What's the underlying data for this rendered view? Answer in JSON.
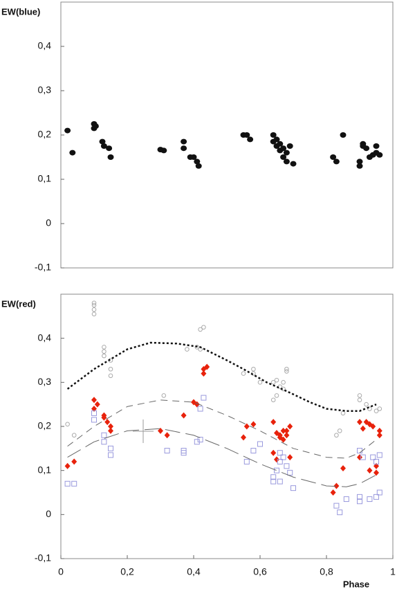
{
  "chart_data": [
    {
      "type": "scatter",
      "ylabel": "EW(blue)",
      "xlim": [
        0,
        1
      ],
      "ylim": [
        -0.1,
        0.5
      ],
      "yticks": [
        {
          "value": -0.1,
          "label": "-0,1"
        },
        0,
        {
          "value": 0.1,
          "label": "0,1"
        },
        {
          "value": 0.2,
          "label": "0,2"
        },
        {
          "value": 0.3,
          "label": "0,3"
        },
        {
          "value": 0.4,
          "label": "0,4"
        }
      ],
      "series": [
        {
          "color": "#111111",
          "marker": "filled-circle",
          "x": [
            0.02,
            0.035,
            0.1,
            0.1,
            0.105,
            0.125,
            0.13,
            0.145,
            0.15,
            0.3,
            0.31,
            0.37,
            0.37,
            0.39,
            0.4,
            0.41,
            0.415,
            0.55,
            0.56,
            0.57,
            0.64,
            0.64,
            0.65,
            0.65,
            0.66,
            0.66,
            0.67,
            0.67,
            0.68,
            0.68,
            0.69,
            0.7,
            0.82,
            0.83,
            0.85,
            0.9,
            0.9,
            0.91,
            0.91,
            0.92,
            0.93,
            0.94,
            0.95,
            0.95,
            0.96
          ],
          "values": [
            0.21,
            0.16,
            0.225,
            0.215,
            0.22,
            0.185,
            0.175,
            0.17,
            0.15,
            0.167,
            0.165,
            0.185,
            0.17,
            0.15,
            0.15,
            0.14,
            0.13,
            0.2,
            0.2,
            0.19,
            0.2,
            0.185,
            0.175,
            0.19,
            0.165,
            0.18,
            0.15,
            0.17,
            0.16,
            0.14,
            0.175,
            0.135,
            0.15,
            0.14,
            0.2,
            0.14,
            0.13,
            0.18,
            0.175,
            0.17,
            0.15,
            0.155,
            0.175,
            0.16,
            0.155
          ]
        }
      ]
    },
    {
      "type": "scatter",
      "ylabel": "EW(red)",
      "xlabel": "Phase",
      "xlim": [
        0,
        1
      ],
      "ylim": [
        -0.1,
        0.5
      ],
      "xticks": [
        0,
        {
          "value": 0.2,
          "label": "0,2"
        },
        {
          "value": 0.4,
          "label": "0,4"
        },
        {
          "value": 0.6,
          "label": "0,6"
        },
        {
          "value": 0.8,
          "label": "0,8"
        },
        1
      ],
      "yticks": [
        {
          "value": -0.1,
          "label": "-0,1"
        },
        0,
        {
          "value": 0.1,
          "label": "0,1"
        },
        {
          "value": 0.2,
          "label": "0,2"
        },
        {
          "value": 0.3,
          "label": "0,3"
        },
        {
          "value": 0.4,
          "label": "0,4"
        }
      ],
      "series": [
        {
          "color": "#aaaaaa",
          "marker": "circle",
          "x": [
            0.02,
            0.04,
            0.1,
            0.1,
            0.1,
            0.1,
            0.13,
            0.13,
            0.13,
            0.15,
            0.15,
            0.15,
            0.31,
            0.38,
            0.41,
            0.42,
            0.43,
            0.42,
            0.55,
            0.58,
            0.58,
            0.6,
            0.64,
            0.65,
            0.66,
            0.64,
            0.65,
            0.67,
            0.68,
            0.68,
            0.67,
            0.83,
            0.84,
            0.85,
            0.9,
            0.9,
            0.92,
            0.93,
            0.95,
            0.96
          ],
          "values": [
            0.205,
            0.18,
            0.48,
            0.475,
            0.465,
            0.455,
            0.38,
            0.37,
            0.36,
            0.35,
            0.33,
            0.315,
            0.27,
            0.375,
            0.38,
            0.42,
            0.425,
            0.375,
            0.32,
            0.33,
            0.32,
            0.3,
            0.3,
            0.305,
            0.29,
            0.26,
            0.27,
            0.3,
            0.33,
            0.325,
            0.285,
            0.18,
            0.19,
            0.23,
            0.27,
            0.26,
            0.25,
            0.24,
            0.235,
            0.24
          ]
        },
        {
          "color": "#e8220c",
          "marker": "diamond",
          "x": [
            0.02,
            0.04,
            0.1,
            0.1,
            0.11,
            0.13,
            0.13,
            0.14,
            0.15,
            0.15,
            0.3,
            0.32,
            0.37,
            0.4,
            0.41,
            0.43,
            0.43,
            0.44,
            0.55,
            0.56,
            0.58,
            0.64,
            0.64,
            0.65,
            0.65,
            0.66,
            0.66,
            0.67,
            0.67,
            0.68,
            0.68,
            0.69,
            0.69,
            0.82,
            0.83,
            0.85,
            0.9,
            0.9,
            0.91,
            0.92,
            0.93,
            0.93,
            0.94,
            0.95,
            0.95,
            0.96,
            0.96
          ],
          "values": [
            0.11,
            0.12,
            0.26,
            0.24,
            0.25,
            0.225,
            0.22,
            0.21,
            0.2,
            0.19,
            0.19,
            0.18,
            0.225,
            0.255,
            0.25,
            0.33,
            0.32,
            0.335,
            0.175,
            0.2,
            0.205,
            0.21,
            0.14,
            0.185,
            0.125,
            0.18,
            0.175,
            0.19,
            0.17,
            0.18,
            0.19,
            0.2,
            0.13,
            0.05,
            0.065,
            0.105,
            0.13,
            0.21,
            0.195,
            0.21,
            0.205,
            0.1,
            0.2,
            0.095,
            0.11,
            0.19,
            0.18
          ]
        },
        {
          "color": "#9999dd",
          "marker": "square",
          "x": [
            0.02,
            0.04,
            0.1,
            0.1,
            0.13,
            0.13,
            0.15,
            0.15,
            0.32,
            0.37,
            0.37,
            0.41,
            0.42,
            0.43,
            0.42,
            0.56,
            0.58,
            0.6,
            0.64,
            0.64,
            0.65,
            0.66,
            0.66,
            0.66,
            0.67,
            0.68,
            0.69,
            0.7,
            0.83,
            0.84,
            0.86,
            0.9,
            0.91,
            0.9,
            0.9,
            0.93,
            0.94,
            0.95,
            0.96,
            0.96,
            0.95
          ],
          "values": [
            0.07,
            0.07,
            0.23,
            0.215,
            0.18,
            0.165,
            0.15,
            0.135,
            0.145,
            0.145,
            0.14,
            0.165,
            0.24,
            0.265,
            0.17,
            0.12,
            0.145,
            0.16,
            0.085,
            0.075,
            0.1,
            0.14,
            0.12,
            0.075,
            0.13,
            0.11,
            0.095,
            0.06,
            0.02,
            0.005,
            0.035,
            0.145,
            0.13,
            0.04,
            0.03,
            0.035,
            0.13,
            0.04,
            0.05,
            0.135,
            0.12
          ]
        },
        {
          "color": "#111111",
          "marker": "dotted",
          "x": [
            0.02,
            0.1,
            0.2,
            0.27,
            0.35,
            0.42,
            0.5,
            0.55,
            0.62,
            0.68,
            0.75,
            0.8,
            0.86,
            0.9,
            0.95
          ],
          "values": [
            0.285,
            0.33,
            0.375,
            0.39,
            0.388,
            0.38,
            0.35,
            0.33,
            0.3,
            0.28,
            0.255,
            0.24,
            0.235,
            0.235,
            0.25
          ]
        },
        {
          "color": "#666666",
          "marker": "dashed",
          "x": [
            0.02,
            0.1,
            0.2,
            0.3,
            0.4,
            0.5,
            0.6,
            0.7,
            0.8,
            0.86,
            0.9,
            0.95
          ],
          "values": [
            0.155,
            0.2,
            0.245,
            0.26,
            0.255,
            0.225,
            0.19,
            0.15,
            0.13,
            0.128,
            0.14,
            0.17
          ]
        },
        {
          "color": "#666666",
          "marker": "longdash",
          "x": [
            0.02,
            0.1,
            0.2,
            0.3,
            0.4,
            0.5,
            0.6,
            0.7,
            0.8,
            0.86,
            0.9,
            0.95
          ],
          "values": [
            0.13,
            0.165,
            0.19,
            0.195,
            0.18,
            0.15,
            0.115,
            0.085,
            0.065,
            0.063,
            0.07,
            0.09
          ]
        }
      ]
    }
  ]
}
